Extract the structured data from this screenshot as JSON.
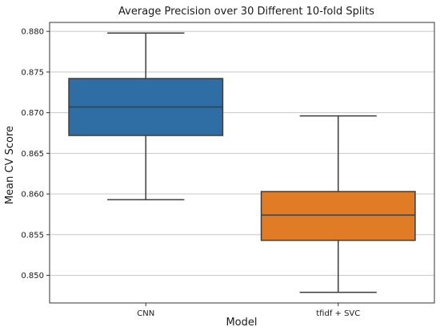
{
  "chart_data": {
    "type": "box",
    "title": "Average Precision over 30 Different 10-fold Splits",
    "xlabel": "Model",
    "ylabel": "Mean CV Score",
    "categories": [
      "CNN",
      "tfidf + SVC"
    ],
    "boxes": [
      {
        "category": "CNN",
        "whisker_low": 0.8593,
        "q1": 0.8672,
        "median": 0.8707,
        "q3": 0.8742,
        "whisker_high": 0.8798,
        "color": "#2e6ea5"
      },
      {
        "category": "tfidf + SVC",
        "whisker_low": 0.8479,
        "q1": 0.8543,
        "median": 0.8574,
        "q3": 0.8603,
        "whisker_high": 0.8696,
        "color": "#e07b26"
      }
    ],
    "ylim": [
      0.8466,
      0.8811
    ],
    "yticks": [
      0.85,
      0.855,
      0.86,
      0.865,
      0.87,
      0.875,
      0.88
    ],
    "ytick_labels": [
      "0.850",
      "0.855",
      "0.860",
      "0.865",
      "0.870",
      "0.875",
      "0.880"
    ],
    "grid": "horizontal",
    "legend": "none"
  }
}
